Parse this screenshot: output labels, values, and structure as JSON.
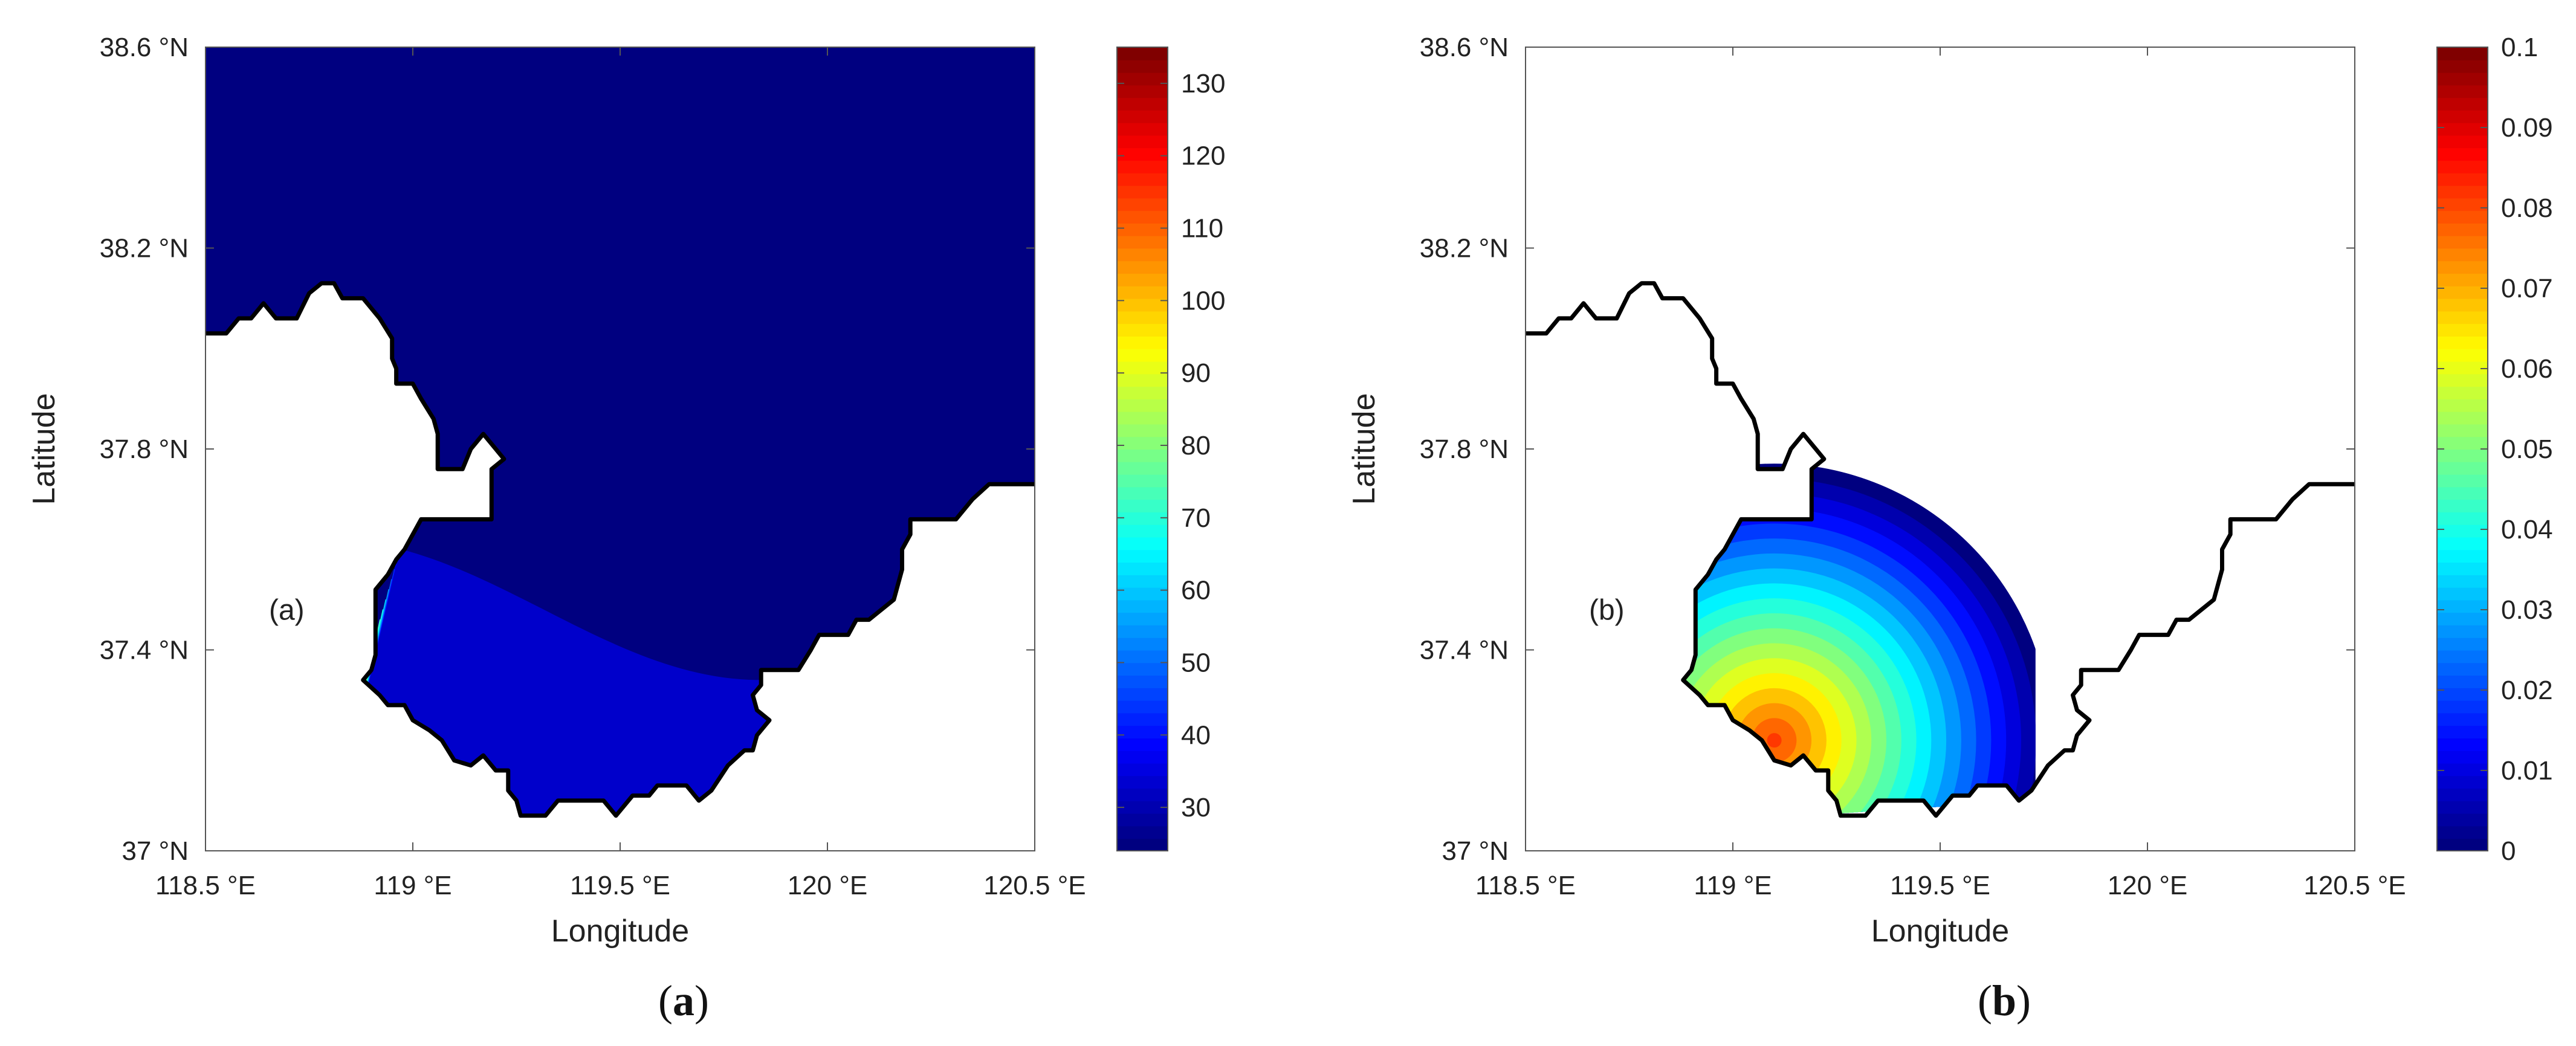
{
  "chart_data": [
    {
      "type": "heatmap",
      "panel_label": "(a)",
      "caption_letter": "a",
      "xlabel": "Longitude",
      "ylabel": "Latitude",
      "xlim": [
        118.5,
        120.5
      ],
      "ylim": [
        37.0,
        38.6
      ],
      "xticks": [
        118.5,
        119.0,
        119.5,
        120.0,
        120.5
      ],
      "xtick_labels": [
        "118.5 °E",
        "119 °E",
        "119.5 °E",
        "120 °E",
        "120.5 °E"
      ],
      "yticks": [
        37.0,
        37.4,
        37.8,
        38.2,
        38.6
      ],
      "ytick_labels": [
        "37 °N",
        "37.4 °N",
        "37.8 °N",
        "38.2 °N",
        "38.6 °N"
      ],
      "colorbar": {
        "min": 24,
        "max": 135,
        "ticks": [
          30,
          40,
          50,
          60,
          70,
          80,
          90,
          100,
          110,
          120,
          130
        ],
        "tick_labels": [
          "30",
          "40",
          "50",
          "60",
          "70",
          "80",
          "90",
          "100",
          "110",
          "120",
          "130"
        ],
        "colormap": "jet"
      },
      "field": {
        "description_value_range": [
          24,
          135
        ],
        "high_value_region": "south coast near 119.45 °E, 37.1 °N",
        "background_value": 24
      }
    },
    {
      "type": "heatmap",
      "panel_label": "(b)",
      "caption_letter": "b",
      "xlabel": "Longitude",
      "ylabel": "Latitude",
      "xlim": [
        118.5,
        120.5
      ],
      "ylim": [
        37.0,
        38.6
      ],
      "xticks": [
        118.5,
        119.0,
        119.5,
        120.0,
        120.5
      ],
      "xtick_labels": [
        "118.5 °E",
        "119 °E",
        "119.5 °E",
        "120 °E",
        "120.5 °E"
      ],
      "yticks": [
        37.0,
        37.4,
        37.8,
        38.2,
        38.6
      ],
      "ytick_labels": [
        "37 °N",
        "37.4 °N",
        "37.8 °N",
        "38.2 °N",
        "38.6 °N"
      ],
      "colorbar": {
        "min": 0,
        "max": 0.1,
        "ticks": [
          0,
          0.01,
          0.02,
          0.03,
          0.04,
          0.05,
          0.06,
          0.07,
          0.08,
          0.09,
          0.1
        ],
        "tick_labels": [
          "0",
          "0.01",
          "0.02",
          "0.03",
          "0.04",
          "0.05",
          "0.06",
          "0.07",
          "0.08",
          "0.09",
          "0.1"
        ],
        "colormap": "jet"
      },
      "field": {
        "description_value_range": [
          0,
          0.1
        ],
        "high_value_region": "near 119.1 °E, 37.25 °N",
        "background_value": 0
      }
    }
  ],
  "coastline": [
    [
      118.5,
      38.03
    ],
    [
      118.55,
      38.03
    ],
    [
      118.58,
      38.06
    ],
    [
      118.61,
      38.06
    ],
    [
      118.64,
      38.09
    ],
    [
      118.67,
      38.06
    ],
    [
      118.72,
      38.06
    ],
    [
      118.75,
      38.11
    ],
    [
      118.78,
      38.13
    ],
    [
      118.81,
      38.13
    ],
    [
      118.83,
      38.1
    ],
    [
      118.88,
      38.1
    ],
    [
      118.92,
      38.06
    ],
    [
      118.95,
      38.02
    ],
    [
      118.95,
      37.98
    ],
    [
      118.96,
      37.96
    ],
    [
      118.96,
      37.93
    ],
    [
      119.0,
      37.93
    ],
    [
      119.02,
      37.9
    ],
    [
      119.05,
      37.86
    ],
    [
      119.06,
      37.83
    ],
    [
      119.06,
      37.76
    ],
    [
      119.12,
      37.76
    ],
    [
      119.14,
      37.8
    ],
    [
      119.17,
      37.83
    ],
    [
      119.2,
      37.8
    ],
    [
      119.22,
      37.78
    ],
    [
      119.19,
      37.76
    ],
    [
      119.19,
      37.73
    ],
    [
      119.19,
      37.66
    ],
    [
      119.12,
      37.66
    ],
    [
      119.02,
      37.66
    ],
    [
      119.0,
      37.63
    ],
    [
      118.98,
      37.6
    ],
    [
      118.96,
      37.58
    ],
    [
      118.94,
      37.55
    ],
    [
      118.91,
      37.52
    ],
    [
      118.91,
      37.48
    ],
    [
      118.91,
      37.43
    ],
    [
      118.91,
      37.39
    ],
    [
      118.9,
      37.36
    ],
    [
      118.88,
      37.34
    ],
    [
      118.92,
      37.31
    ],
    [
      118.94,
      37.29
    ],
    [
      118.98,
      37.29
    ],
    [
      119.0,
      37.26
    ],
    [
      119.04,
      37.24
    ],
    [
      119.07,
      37.22
    ],
    [
      119.1,
      37.18
    ],
    [
      119.14,
      37.17
    ],
    [
      119.17,
      37.19
    ],
    [
      119.2,
      37.16
    ],
    [
      119.23,
      37.16
    ],
    [
      119.23,
      37.12
    ],
    [
      119.25,
      37.1
    ],
    [
      119.26,
      37.07
    ],
    [
      119.32,
      37.07
    ],
    [
      119.35,
      37.1
    ],
    [
      119.46,
      37.1
    ],
    [
      119.49,
      37.07
    ],
    [
      119.53,
      37.11
    ],
    [
      119.57,
      37.11
    ],
    [
      119.59,
      37.13
    ],
    [
      119.66,
      37.13
    ],
    [
      119.69,
      37.1
    ],
    [
      119.72,
      37.12
    ],
    [
      119.76,
      37.17
    ],
    [
      119.8,
      37.2
    ],
    [
      119.82,
      37.2
    ],
    [
      119.83,
      37.23
    ],
    [
      119.86,
      37.26
    ],
    [
      119.83,
      37.28
    ],
    [
      119.82,
      37.31
    ],
    [
      119.84,
      37.33
    ],
    [
      119.84,
      37.36
    ],
    [
      119.93,
      37.36
    ],
    [
      119.96,
      37.4
    ],
    [
      119.98,
      37.43
    ],
    [
      120.05,
      37.43
    ],
    [
      120.07,
      37.46
    ],
    [
      120.1,
      37.46
    ],
    [
      120.16,
      37.5
    ],
    [
      120.18,
      37.56
    ],
    [
      120.18,
      37.6
    ],
    [
      120.2,
      37.63
    ],
    [
      120.2,
      37.66
    ],
    [
      120.31,
      37.66
    ],
    [
      120.35,
      37.7
    ],
    [
      120.39,
      37.73
    ],
    [
      120.5,
      37.73
    ]
  ],
  "caption": {
    "left": "(a)",
    "right": "(b)"
  }
}
